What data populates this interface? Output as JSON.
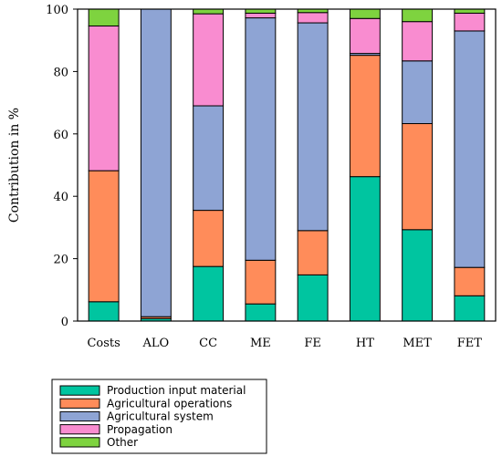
{
  "chart_data": {
    "type": "bar",
    "stacked": true,
    "title": "",
    "xlabel": "",
    "ylabel": "Contribution in %",
    "ylim": [
      0,
      100
    ],
    "yticks": [
      0,
      20,
      40,
      60,
      80,
      100
    ],
    "grid": false,
    "legend_position": "bottom-left",
    "categories": [
      "Costs",
      "ALO",
      "CC",
      "ME",
      "FE",
      "HT",
      "MET",
      "FET"
    ],
    "series": [
      {
        "name": "Production input material",
        "color": "#00c5a0",
        "values": [
          6.2,
          0.8,
          17.5,
          5.5,
          14.8,
          46.3,
          29.3,
          8.1
        ]
      },
      {
        "name": "Agricultural operations",
        "color": "#ff8c5a",
        "values": [
          42.0,
          0.6,
          18.0,
          14.0,
          14.2,
          38.9,
          34.0,
          9.1
        ]
      },
      {
        "name": "Agricultural system",
        "color": "#8ea4d4",
        "values": [
          0.0,
          98.6,
          33.5,
          77.7,
          66.6,
          0.6,
          20.1,
          75.8
        ]
      },
      {
        "name": "Propagation",
        "color": "#f98cd0",
        "values": [
          46.4,
          0.0,
          29.5,
          1.5,
          3.3,
          11.2,
          12.6,
          5.7
        ]
      },
      {
        "name": "Other",
        "color": "#7ed33f",
        "values": [
          5.4,
          0.0,
          1.5,
          1.3,
          1.1,
          3.0,
          4.0,
          1.3
        ]
      }
    ]
  }
}
